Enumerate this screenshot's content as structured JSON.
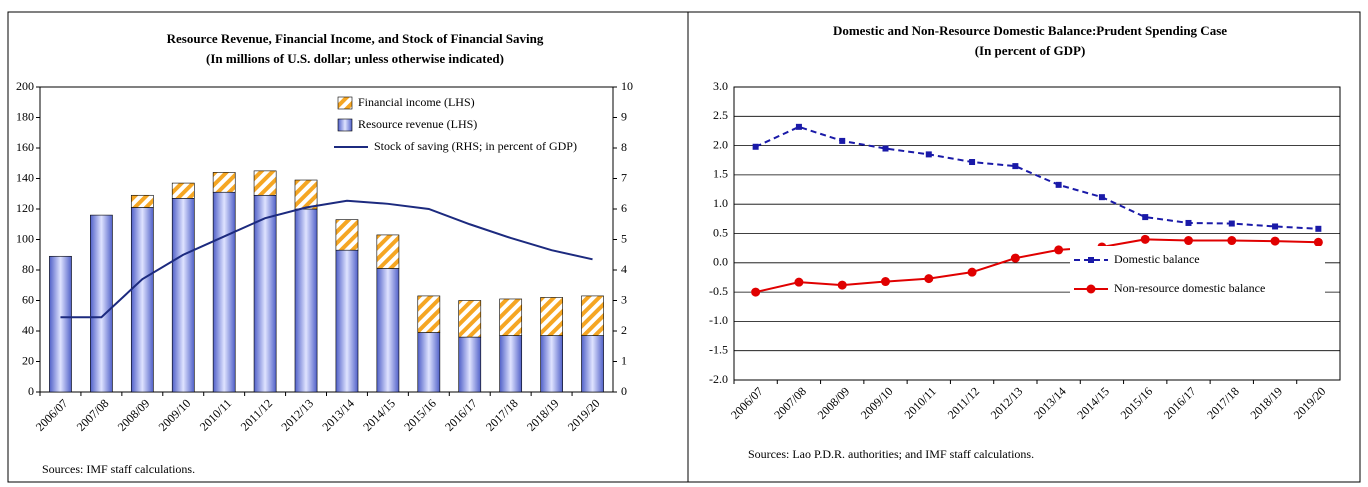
{
  "chart_data": [
    {
      "type": "bar",
      "stacked": true,
      "title": "Resource Revenue, Financial Income, and Stock of Financial Saving",
      "subtitle": "(In millions of U.S. dollar; unless otherwise indicated)",
      "note": "Sources: IMF staff calculations.",
      "categories": [
        "2006/07",
        "2007/08",
        "2008/09",
        "2009/10",
        "2010/11",
        "2011/12",
        "2012/13",
        "2013/14",
        "2014/15",
        "2015/16",
        "2016/17",
        "2017/18",
        "2018/19",
        "2019/20"
      ],
      "series": [
        {
          "name": "Financial income (LHS)",
          "color": "#f5a623",
          "fill": "hatch",
          "values": [
            0,
            0,
            8,
            10,
            13,
            16,
            19,
            20,
            22,
            24,
            24,
            24,
            25,
            26
          ]
        },
        {
          "name": "Resource revenue (LHS)",
          "color": "#6f7fd8",
          "fill": "gradient",
          "values": [
            89,
            116,
            121,
            127,
            131,
            129,
            120,
            93,
            81,
            39,
            36,
            37,
            37,
            37
          ]
        },
        {
          "name": "Stock of saving (RHS; in percent of GDP)",
          "type": "line",
          "axis": "y2",
          "color": "#1c2a7f",
          "values": [
            2.45,
            2.45,
            3.7,
            4.5,
            5.1,
            5.7,
            6.05,
            6.27,
            6.17,
            6.0,
            5.5,
            5.05,
            4.65,
            4.35
          ]
        }
      ],
      "ylim": [
        0,
        200
      ],
      "yticks": [
        0,
        20,
        40,
        60,
        80,
        100,
        120,
        140,
        160,
        180,
        200
      ],
      "y2lim": [
        0,
        10
      ],
      "y2ticks": [
        0,
        1,
        2,
        3,
        4,
        5,
        6,
        7,
        8,
        9,
        10
      ],
      "grid": false,
      "legend": "upper right"
    },
    {
      "type": "line",
      "title": "Domestic and Non-Resource Domestic Balance:Prudent Spending Case",
      "subtitle": "(In percent of GDP)",
      "note": "Sources: Lao P.D.R. authorities; and IMF staff calculations.",
      "categories": [
        "2006/07",
        "2007/08",
        "2008/09",
        "2009/10",
        "2010/11",
        "2011/12",
        "2012/13",
        "2013/14",
        "2014/15",
        "2015/16",
        "2016/17",
        "2017/18",
        "2018/19",
        "2019/20"
      ],
      "series": [
        {
          "name": "Domestic balance",
          "color": "#1a1aa8",
          "dash": true,
          "marker": "square",
          "values": [
            1.98,
            2.32,
            2.08,
            1.95,
            1.85,
            1.72,
            1.65,
            1.33,
            1.12,
            0.78,
            0.68,
            0.67,
            0.62,
            0.58
          ]
        },
        {
          "name": "Non-resource domestic balance",
          "color": "#e00000",
          "dash": false,
          "marker": "circle",
          "values": [
            -0.5,
            -0.33,
            -0.38,
            -0.32,
            -0.27,
            -0.16,
            0.08,
            0.22,
            0.27,
            0.4,
            0.38,
            0.38,
            0.37,
            0.35
          ]
        }
      ],
      "ylim": [
        -2,
        3
      ],
      "yticks": [
        {
          "value": -2,
          "label": "-2.0"
        },
        {
          "value": -1.5,
          "label": "-1.5"
        },
        {
          "value": -1,
          "label": "-1.0"
        },
        {
          "value": -0.5,
          "label": "-0.5"
        },
        {
          "value": 0,
          "label": "0.0"
        },
        {
          "value": 0.5,
          "label": "0.5"
        },
        {
          "value": 1,
          "label": "1.0"
        },
        {
          "value": 1.5,
          "label": "1.5"
        },
        {
          "value": 2,
          "label": "2.0"
        },
        {
          "value": 2.5,
          "label": "2.5"
        },
        {
          "value": 3,
          "label": "3.0"
        }
      ],
      "grid": true,
      "legend": "lower right"
    }
  ]
}
